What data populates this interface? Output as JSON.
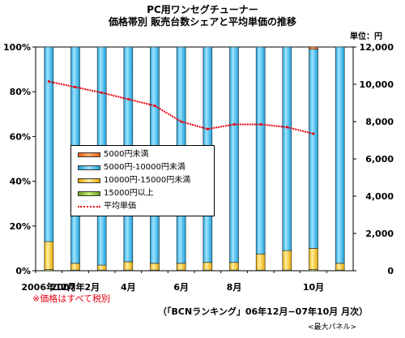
{
  "title_line1": "PC用ワンセグチューナー",
  "title_line2": "価格帯別 販売台数シェアと平均単価の推移",
  "unit_label": "単位：円",
  "note": "※価格はすべて税別",
  "source": "（「BCNランキング」06年12月−07年10月 月次）",
  "panel": "<最大パネル>",
  "colors": {
    "s5000": "#ff8c3a",
    "s5000_10000": "#44c8f5",
    "s10000_15000": "#ffd24a",
    "s15000": "#9acd4a",
    "avg_line": "#e60012"
  },
  "chart_data": {
    "type": "bar",
    "stacked": true,
    "categories": [
      "2006年12月",
      "2007年2月",
      "",
      "4月",
      "",
      "6月",
      "",
      "8月",
      "",
      "",
      "10月",
      ""
    ],
    "x_tick_labels": [
      "2006年12月",
      "2007年2月",
      "4月",
      "6月",
      "8月",
      "10月"
    ],
    "series": [
      {
        "name": "15000円以上",
        "values": [
          0.5,
          0.3,
          0.3,
          0.3,
          0.3,
          0.3,
          0.3,
          0.3,
          0.3,
          0.3,
          0.5,
          0.3
        ]
      },
      {
        "name": "10000円-15000円未満",
        "values": [
          12.5,
          3.0,
          2.2,
          3.7,
          3.0,
          3.0,
          3.4,
          3.4,
          7.2,
          8.7,
          9.5,
          3.0
        ]
      },
      {
        "name": "5000円-10000円未満",
        "values": [
          87.0,
          96.7,
          97.5,
          96.0,
          96.7,
          96.7,
          96.3,
          96.3,
          92.5,
          91.0,
          89.0,
          96.7
        ]
      },
      {
        "name": "5000円未満",
        "values": [
          0,
          0,
          0,
          0,
          0,
          0,
          0,
          0,
          0,
          0,
          1.0,
          0
        ]
      }
    ],
    "line": {
      "name": "平均単価",
      "values": [
        10150,
        9850,
        9550,
        9200,
        8850,
        8000,
        7600,
        7850,
        7850,
        7700,
        7350,
        null
      ]
    },
    "y_left": {
      "min": 0,
      "max": 100,
      "ticks": [
        "0%",
        "20%",
        "40%",
        "60%",
        "80%",
        "100%"
      ]
    },
    "y_right": {
      "min": 0,
      "max": 12000,
      "ticks": [
        "0",
        "2,000",
        "4,000",
        "6,000",
        "8,000",
        "10,000",
        "12,000"
      ]
    },
    "legend": [
      {
        "label": "5000円未満",
        "key": "s5000"
      },
      {
        "label": "5000円-10000円未満",
        "key": "s5000_10000"
      },
      {
        "label": "10000円-15000円未満",
        "key": "s10000_15000"
      },
      {
        "label": "15000円以上",
        "key": "s15000"
      },
      {
        "label": "平均単価",
        "key": "avg_line"
      }
    ],
    "legend_position": "center-left"
  }
}
